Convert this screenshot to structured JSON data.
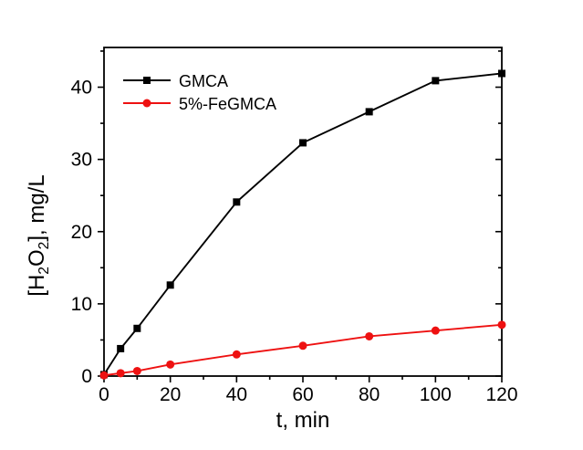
{
  "chart_data": {
    "type": "line",
    "title": "",
    "xlabel": "t, min",
    "ylabel": "[H_2O_2], mg/L",
    "xlim": [
      0,
      120
    ],
    "ylim": [
      0,
      45.5
    ],
    "x_major_ticks": [
      0,
      20,
      40,
      60,
      80,
      100,
      120
    ],
    "x_minor_step": 10,
    "y_major_ticks": [
      0,
      10,
      20,
      30,
      40
    ],
    "y_minor_step": 5,
    "grid": false,
    "legend_position": "top-left-inside",
    "axis_color": "#000000",
    "series": [
      {
        "name": "GMCA",
        "color": "#000000",
        "marker": "square",
        "x": [
          0,
          5,
          10,
          20,
          40,
          60,
          80,
          100,
          120
        ],
        "y": [
          0.2,
          3.8,
          6.6,
          12.6,
          24.1,
          32.3,
          36.6,
          40.9,
          41.9
        ]
      },
      {
        "name": "5%-FeGMCA",
        "color": "#ee1111",
        "marker": "circle",
        "x": [
          0,
          5,
          10,
          20,
          40,
          60,
          80,
          100,
          120
        ],
        "y": [
          0.1,
          0.4,
          0.7,
          1.6,
          3.0,
          4.2,
          5.5,
          6.3,
          7.1
        ]
      }
    ]
  }
}
